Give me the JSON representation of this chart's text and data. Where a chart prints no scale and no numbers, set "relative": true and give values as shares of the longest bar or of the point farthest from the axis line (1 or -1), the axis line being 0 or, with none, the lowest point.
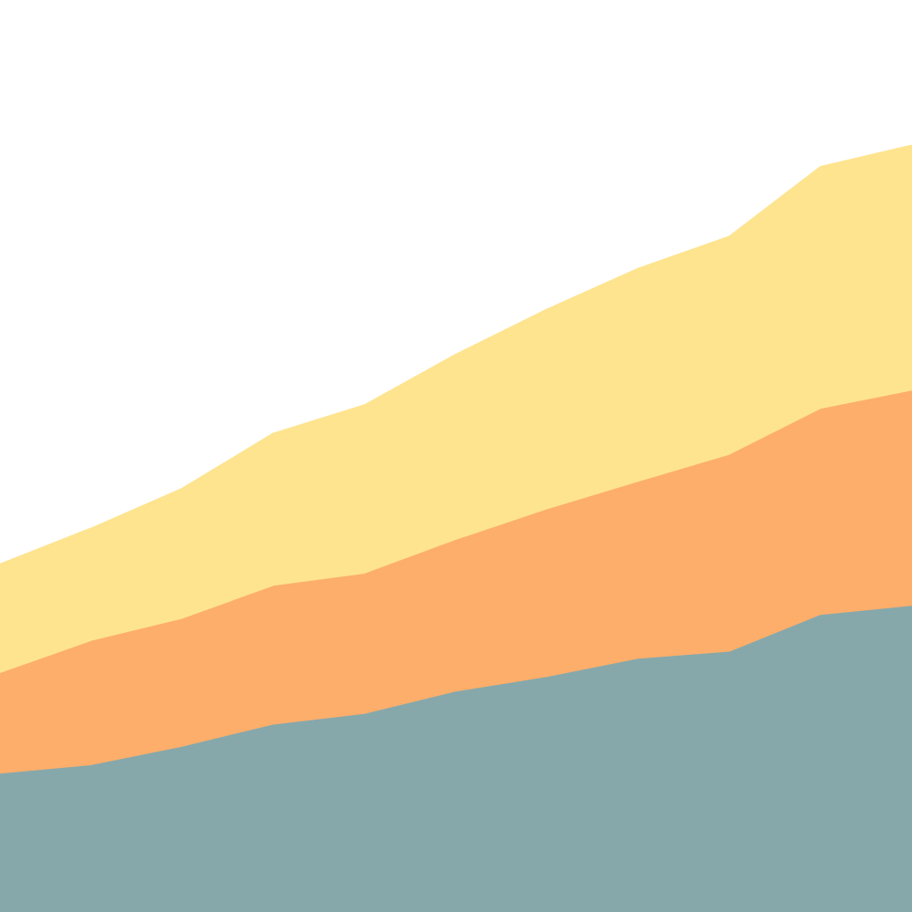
{
  "chart_data": {
    "type": "area",
    "stacked": true,
    "relative": true,
    "categories": [
      null,
      null,
      null,
      null,
      null,
      null,
      null,
      null,
      null,
      null,
      null
    ],
    "series": [
      {
        "color": "#86a8ab",
        "values": [
          0.179,
          0.19,
          0.214,
          0.243,
          0.257,
          0.286,
          0.305,
          0.329,
          0.338,
          0.386,
          0.398
        ]
      },
      {
        "color": "#fdae6b",
        "values": [
          0.131,
          0.162,
          0.167,
          0.181,
          0.183,
          0.198,
          0.219,
          0.231,
          0.257,
          0.269,
          0.281
        ]
      },
      {
        "color": "#fee48f",
        "values": [
          0.143,
          0.148,
          0.171,
          0.2,
          0.221,
          0.243,
          0.262,
          0.279,
          0.286,
          0.317,
          0.321
        ]
      }
    ]
  }
}
